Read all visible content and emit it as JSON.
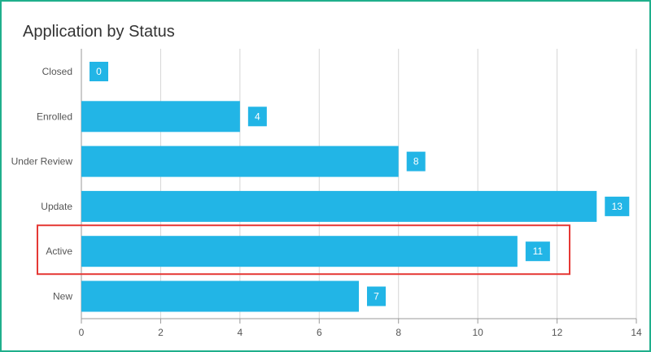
{
  "title": "Application by Status",
  "colors": {
    "bar": "#22b5e6",
    "grid": "#d6d6d6",
    "axis": "#999999",
    "frame": "#1faf8c",
    "highlight": "#e53935"
  },
  "chart_data": {
    "type": "bar",
    "orientation": "horizontal",
    "title": "Application by Status",
    "categories": [
      "Closed",
      "Enrolled",
      "Under Review",
      "Update",
      "Active",
      "New"
    ],
    "values": [
      0,
      4,
      8,
      13,
      11,
      7
    ],
    "xlim": [
      0,
      14
    ],
    "xticks": [
      0,
      2,
      4,
      6,
      8,
      10,
      12,
      14
    ],
    "grid": true,
    "data_labels": true,
    "highlighted_category": "Active"
  }
}
